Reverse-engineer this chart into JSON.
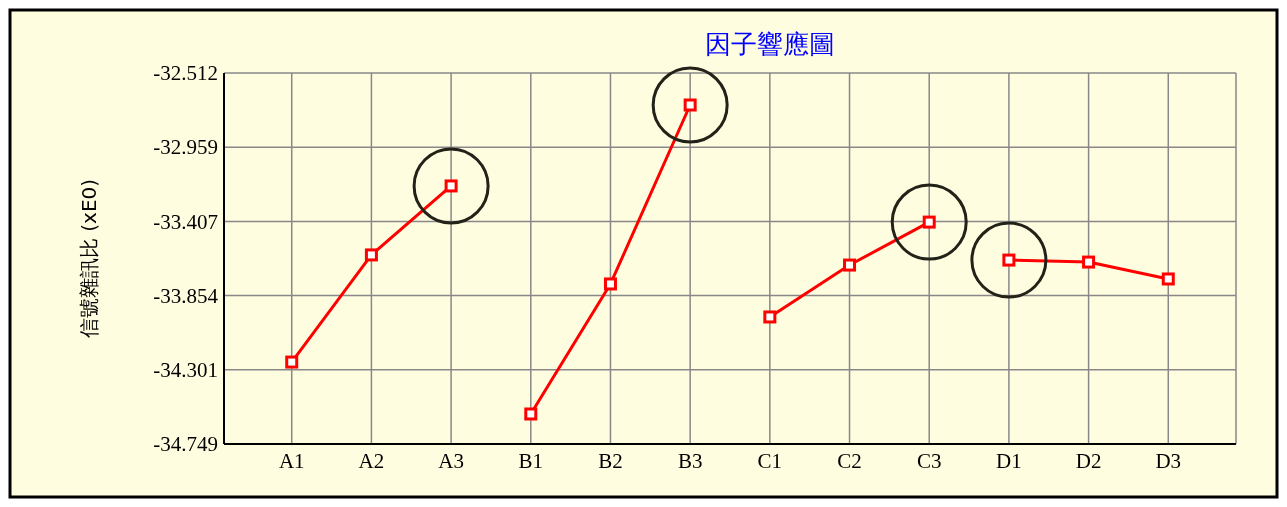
{
  "chart_data": {
    "type": "line",
    "title": "因子響應圖",
    "ylabel": "信號雜訊比 (xE0)",
    "categories": [
      "A1",
      "A2",
      "A3",
      "B1",
      "B2",
      "B3",
      "C1",
      "C2",
      "C3",
      "D1",
      "D2",
      "D3"
    ],
    "series": [
      {
        "color": "#ff0000",
        "x": [
          "A1",
          "A2",
          "A3"
        ],
        "values": [
          -34.255,
          -33.609,
          -33.193
        ]
      },
      {
        "color": "#ff0000",
        "x": [
          "B1",
          "B2",
          "B3"
        ],
        "values": [
          -34.568,
          -33.784,
          -32.705
        ]
      },
      {
        "color": "#ff0000",
        "x": [
          "C1",
          "C2",
          "C3"
        ],
        "values": [
          -33.983,
          -33.67,
          -33.411
        ]
      },
      {
        "color": "#ff0000",
        "x": [
          "D1",
          "D2",
          "D3"
        ],
        "values": [
          -33.64,
          -33.652,
          -33.754
        ]
      }
    ],
    "ylim": [
      -34.749,
      -32.512
    ],
    "yticks": [
      -34.749,
      -34.301,
      -33.854,
      -33.407,
      -32.959,
      -32.512
    ],
    "grid": true,
    "marker": "square",
    "line_style": "solid"
  }
}
